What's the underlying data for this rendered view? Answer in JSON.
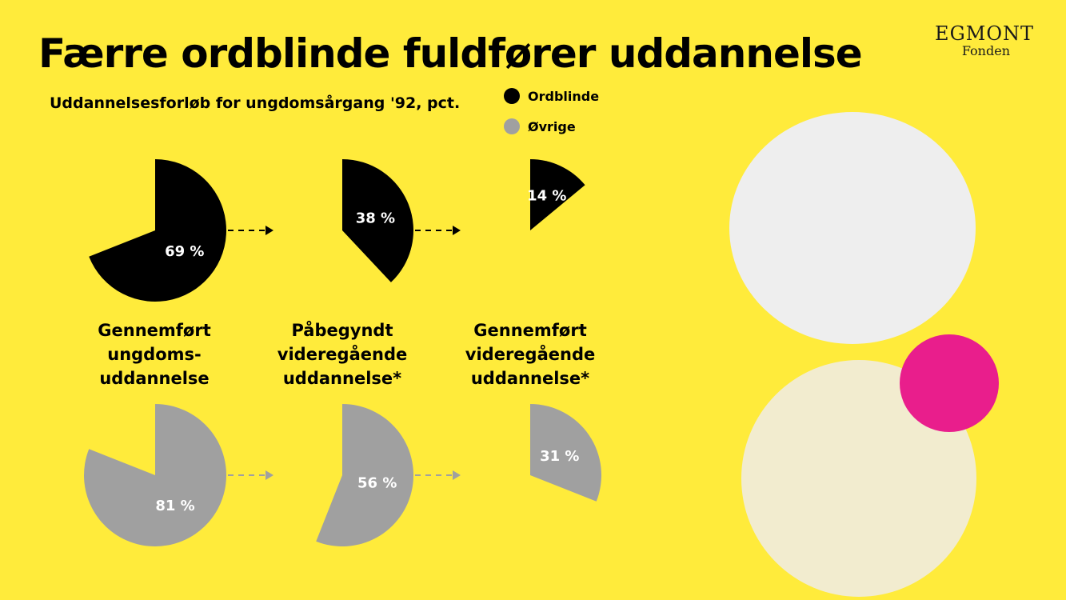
{
  "title": "Færre ordblinde fuldfører uddannelse",
  "subtitle": "Uddannelsesforløb for ungdomsårgang '92, pct.",
  "logo": {
    "brand": "EGMONT",
    "sub": "Fonden"
  },
  "legend": [
    {
      "label": "Ordblinde",
      "color": "#000000"
    },
    {
      "label": "Øvrige",
      "color": "#A0A0A0"
    }
  ],
  "stages": [
    {
      "line1": "Gennemført",
      "line2": "ungdoms-",
      "line3": "uddannelse"
    },
    {
      "line1": "Påbegyndt",
      "line2": "videregående",
      "line3": "uddannelse*"
    },
    {
      "line1": "Gennemført",
      "line2": "videregående",
      "line3": "uddannelse*"
    }
  ],
  "chart_data": {
    "type": "pie",
    "title": "Færre ordblinde fuldfører uddannelse",
    "subtitle": "Uddannelsesforløb for ungdomsårgang '92, pct.",
    "categories": [
      "Gennemført ungdoms-uddannelse",
      "Påbegyndt videregående uddannelse*",
      "Gennemført videregående uddannelse*"
    ],
    "series": [
      {
        "name": "Ordblinde",
        "color": "#000000",
        "values": [
          69,
          38,
          14
        ],
        "labels": [
          "69 %",
          "38 %",
          "14 %"
        ]
      },
      {
        "name": "Øvrige",
        "color": "#A0A0A0",
        "values": [
          81,
          56,
          31
        ],
        "labels": [
          "81 %",
          "56 %",
          "31 %"
        ]
      }
    ],
    "unit": "%"
  },
  "colors": {
    "background": "#FFEB3B",
    "ordblinde": "#000000",
    "ovrige": "#A0A0A0",
    "deco_light_grey": "#EEEEEE",
    "deco_cream": "#F2ECCF",
    "deco_pink": "#E91E8C"
  }
}
